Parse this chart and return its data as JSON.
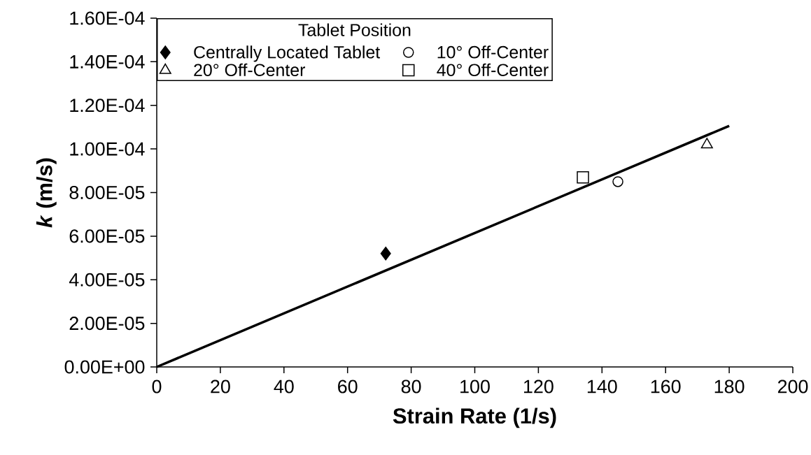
{
  "chart_data": {
    "type": "scatter",
    "xlabel": "Strain Rate (1/s)",
    "ylabel": "*k* (m/s)",
    "legend_title": "Tablet Position",
    "legend": "top left",
    "grid": false,
    "xlim": [
      0,
      200
    ],
    "xticks": [
      0,
      20,
      40,
      60,
      80,
      100,
      120,
      140,
      160,
      180,
      200
    ],
    "ylim": [
      0,
      0.00016
    ],
    "yticks": [
      {
        "value": 0,
        "label": "0.00E+00"
      },
      {
        "value": 2e-05,
        "label": "2.00E-05"
      },
      {
        "value": 4e-05,
        "label": "4.00E-05"
      },
      {
        "value": 6e-05,
        "label": "6.00E-05"
      },
      {
        "value": 8e-05,
        "label": "8.00E-05"
      },
      {
        "value": 0.0001,
        "label": "1.00E-04"
      },
      {
        "value": 0.00012,
        "label": "1.20E-04"
      },
      {
        "value": 0.00014,
        "label": "1.40E-04"
      },
      {
        "value": 0.00016,
        "label": "1.60E-04"
      }
    ],
    "series": [
      {
        "name": "Centrally Located Tablet",
        "color": "#000000",
        "marker": "diamond",
        "x": [
          72
        ],
        "values": [
          5.2e-05
        ]
      },
      {
        "name": "10° Off-Center",
        "color": "#000000",
        "marker": "circle",
        "x": [
          145
        ],
        "values": [
          8.5e-05
        ]
      },
      {
        "name": "20° Off-Center",
        "color": "#000000",
        "marker": "triangle",
        "x": [
          173
        ],
        "values": [
          0.000102
        ]
      },
      {
        "name": "40° Off-Center",
        "color": "#000000",
        "marker": "square",
        "x": [
          134
        ],
        "values": [
          8.7e-05
        ]
      },
      {
        "type": "line",
        "color": "#000000",
        "marker": "none",
        "line_style": "solid",
        "x": [
          0,
          180
        ],
        "values": [
          0,
          0.0001106
        ]
      }
    ]
  }
}
